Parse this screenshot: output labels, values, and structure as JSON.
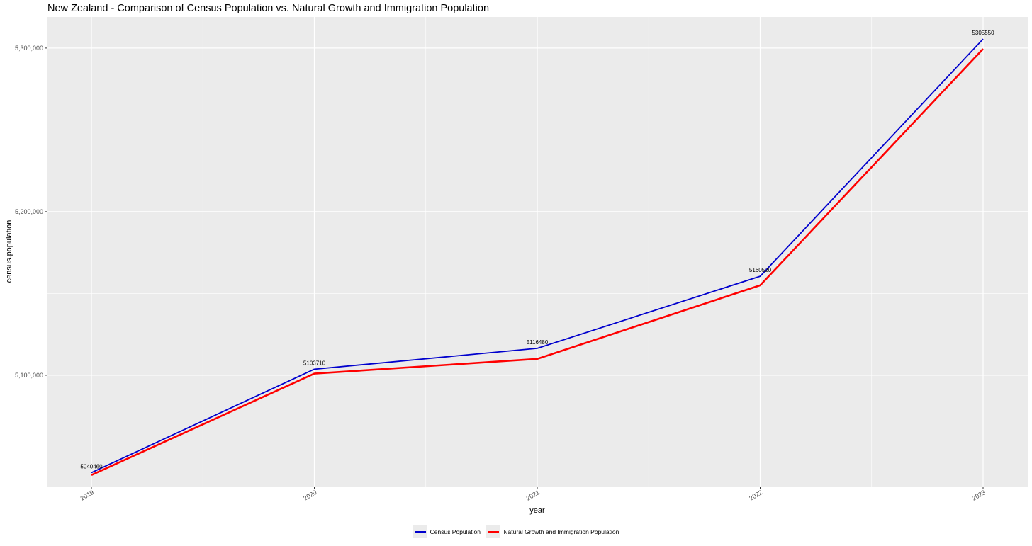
{
  "chart_data": {
    "type": "line",
    "title": "New Zealand - Comparison of Census Population vs. Natural Growth and Immigration Population",
    "xlabel": "year",
    "ylabel": "census.population",
    "x": [
      "2019",
      "2020",
      "2021",
      "2022",
      "2023"
    ],
    "ylim": [
      5032000,
      5319000
    ],
    "yticks": [
      5100000,
      5200000,
      5300000
    ],
    "ytick_labels": [
      "5,100,000",
      "5,200,000",
      "5,300,000"
    ],
    "grid": true,
    "legend_position": "bottom",
    "series": [
      {
        "name": "Census Population",
        "color": "#0000cd",
        "values": [
          5040460,
          5103710,
          5116480,
          5160520,
          5305550
        ],
        "labels": [
          "5040460",
          "5103710",
          "5116480",
          "5160520",
          "5305550"
        ]
      },
      {
        "name": "Natural Growth and Immigration Population",
        "color": "#ff0000",
        "values": [
          5039000,
          5101000,
          5110000,
          5155000,
          5299500
        ]
      }
    ],
    "panel_background": "#ebebeb",
    "grid_color": "#ffffff"
  }
}
